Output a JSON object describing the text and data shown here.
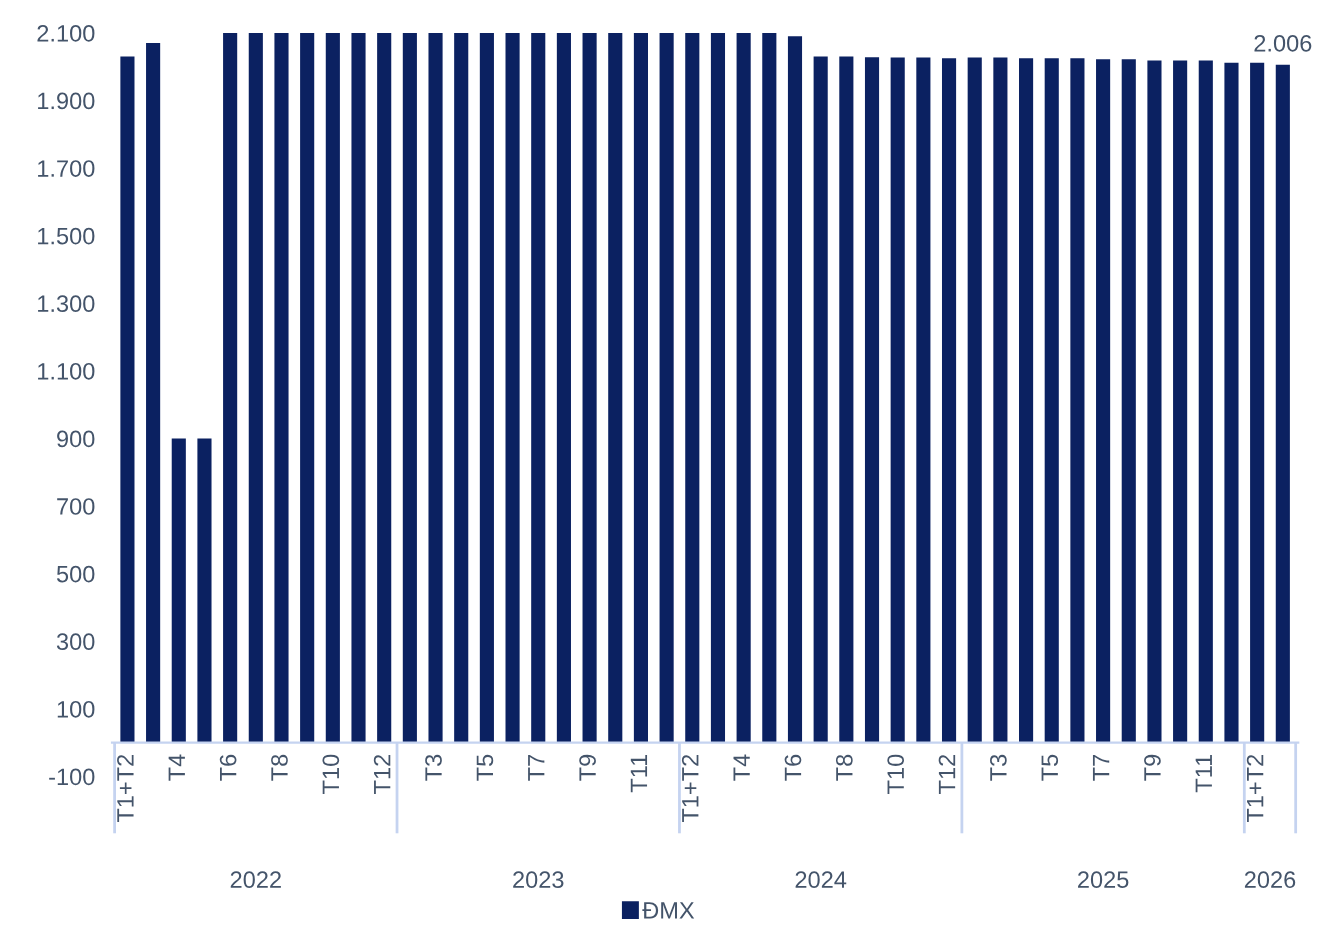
{
  "chart_data": {
    "type": "bar",
    "categories": [
      "T1+T2",
      null,
      "T4",
      null,
      "T6",
      null,
      "T8",
      null,
      "T10",
      null,
      "T12",
      null,
      "T3",
      null,
      "T5",
      null,
      "T7",
      null,
      "T9",
      null,
      "T11",
      null,
      "T1+T2",
      null,
      "T4",
      null,
      "T6",
      null,
      "T8",
      null,
      "T10",
      null,
      "T12",
      null,
      "T3",
      null,
      "T5",
      null,
      "T7",
      null,
      "T9",
      null,
      "T11",
      null,
      "T1+T2",
      null
    ],
    "annotations": [
      "2022",
      "2023",
      "2024",
      "2025",
      "2026"
    ],
    "series": [
      {
        "name": "ĐMX",
        "color": "#0b2161",
        "values": [
          2030,
          2070,
          900,
          900,
          2100,
          2100,
          2100,
          2100,
          2100,
          2100,
          2100,
          2100,
          2100,
          2100,
          2100,
          2100,
          2100,
          2100,
          2100,
          2100,
          2100,
          2100,
          2100,
          2100,
          2100,
          2100,
          2090,
          2030,
          2030,
          2028,
          2027,
          2027,
          2025,
          2027,
          2027,
          2025,
          2025,
          2025,
          2022,
          2022,
          2018,
          2018,
          2018,
          2012,
          2012,
          2006
        ],
        "value_labels": [
          null,
          null,
          null,
          null,
          null,
          null,
          null,
          null,
          null,
          null,
          null,
          null,
          null,
          null,
          null,
          null,
          null,
          null,
          null,
          null,
          null,
          null,
          null,
          null,
          null,
          null,
          null,
          null,
          null,
          null,
          null,
          null,
          null,
          null,
          null,
          null,
          null,
          null,
          null,
          null,
          null,
          null,
          null,
          null,
          null,
          "2.006"
        ]
      }
    ],
    "ylim": [
      -100,
      2100
    ],
    "yticks": [
      {
        "value": -100,
        "label": "-100"
      },
      {
        "value": 100,
        "label": "100"
      },
      {
        "value": 300,
        "label": "300"
      },
      {
        "value": 500,
        "label": "500"
      },
      {
        "value": 700,
        "label": "700"
      },
      {
        "value": 900,
        "label": "900"
      },
      {
        "value": 1100,
        "label": "1.100"
      },
      {
        "value": 1300,
        "label": "1.300"
      },
      {
        "value": 1500,
        "label": "1.500"
      },
      {
        "value": 1700,
        "label": "1.700"
      },
      {
        "value": 1900,
        "label": "1.900"
      },
      {
        "value": 2100,
        "label": "2.100"
      }
    ],
    "grid": false,
    "legend": "bottom"
  }
}
